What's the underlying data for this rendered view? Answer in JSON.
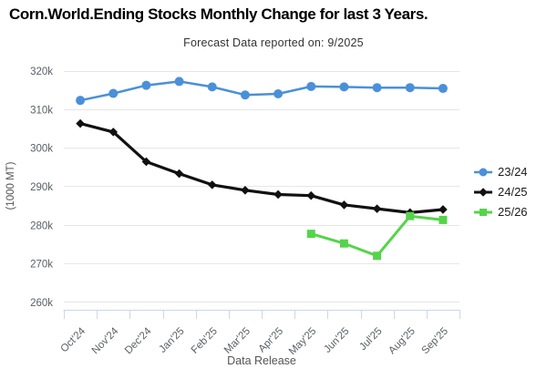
{
  "chart_data": {
    "type": "line",
    "title": "Corn.World.Ending Stocks Monthly Change for last 3 Years.",
    "subtitle": "Forecast Data reported on: 9/2025",
    "x": [
      "Oct'24",
      "Nov'24",
      "Dec'24",
      "Jan'25",
      "Feb'25",
      "Mar'25",
      "Apr'25",
      "May'25",
      "Jun'25",
      "Jul'25",
      "Aug'25",
      "Sep'25"
    ],
    "xlabel": "Data Release",
    "ylabel": "(1000 MT)",
    "values_unit": "1000 MT",
    "ylim": [
      258000,
      324000
    ],
    "yticks": [
      260000,
      270000,
      280000,
      290000,
      300000,
      310000,
      320000
    ],
    "ytick_labels": [
      "260k",
      "270k",
      "280k",
      "290k",
      "300k",
      "310k",
      "320k"
    ],
    "grid": true,
    "legend_position": "right",
    "gridline_color": "#e6e6e6",
    "axis_line_color": "#ccd6eb",
    "series": [
      {
        "name": "23/24",
        "color": "#4a90d9",
        "marker": "circle",
        "values": [
          312400,
          314200,
          316300,
          317300,
          315900,
          313800,
          314100,
          316000,
          315900,
          315700,
          315700,
          315500
        ]
      },
      {
        "name": "24/25",
        "color": "#111111",
        "marker": "diamond",
        "values": [
          306400,
          304200,
          296500,
          293400,
          290500,
          289100,
          288000,
          287700,
          285300,
          284300,
          283300,
          284100
        ]
      },
      {
        "name": "25/26",
        "color": "#55d44b",
        "marker": "square",
        "values": [
          null,
          null,
          null,
          null,
          null,
          null,
          null,
          277800,
          275300,
          272100,
          282400,
          281400
        ]
      }
    ]
  }
}
